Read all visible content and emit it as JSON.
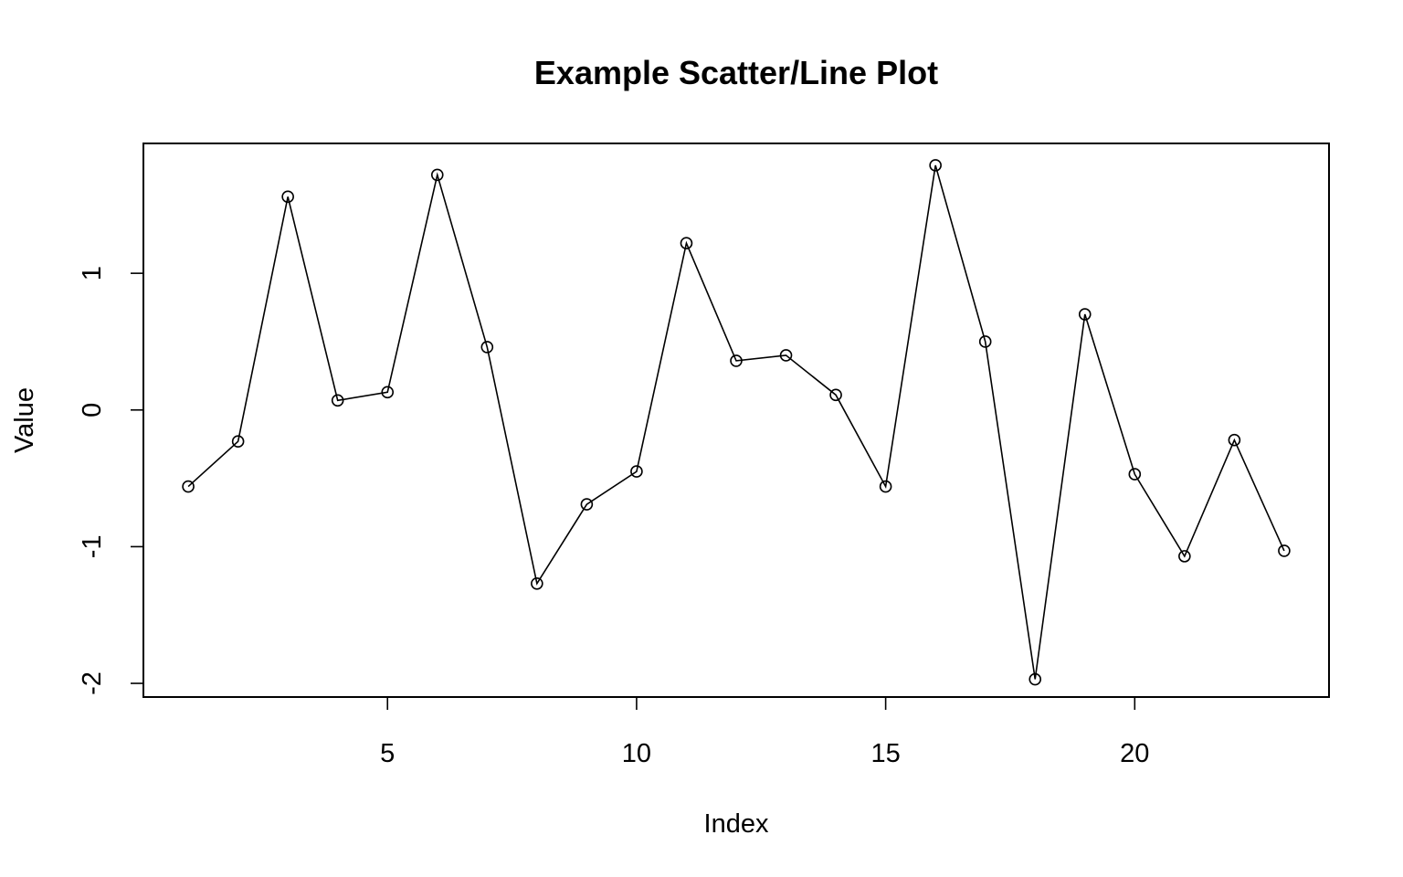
{
  "chart_data": {
    "type": "line",
    "title": "Example Scatter/Line Plot",
    "xlabel": "Index",
    "ylabel": "Value",
    "xlim": [
      0.1,
      23.9
    ],
    "ylim": [
      -2.1,
      1.95
    ],
    "x_ticks": [
      5,
      10,
      15,
      20
    ],
    "x_tick_labels": [
      "5",
      "10",
      "15",
      "20"
    ],
    "y_ticks": [
      -2,
      -1,
      0,
      1
    ],
    "y_tick_labels": [
      "-2",
      "-1",
      "0",
      "1"
    ],
    "grid": false,
    "legend": "none",
    "markers": "open-circle",
    "line_color": "#000000",
    "marker_color": "#000000",
    "x": [
      1,
      2,
      3,
      4,
      5,
      6,
      7,
      8,
      9,
      10,
      11,
      12,
      13,
      14,
      15,
      16,
      17,
      18,
      19,
      20,
      21,
      22,
      23
    ],
    "values": [
      -0.56,
      -0.23,
      1.56,
      0.07,
      0.13,
      1.72,
      0.46,
      -1.27,
      -0.69,
      -0.45,
      1.22,
      0.36,
      0.4,
      0.11,
      -0.56,
      1.79,
      0.5,
      -1.97,
      0.7,
      -0.47,
      -1.07,
      -0.22,
      -1.03
    ]
  }
}
